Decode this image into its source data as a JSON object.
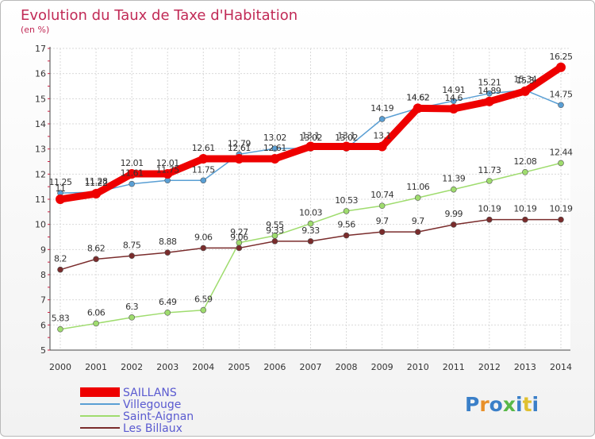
{
  "chart_data": {
    "type": "line",
    "title": "Evolution du Taux de Taxe d'Habitation",
    "subtitle": "(en %)",
    "ylim": [
      5,
      17
    ],
    "yticks": [
      5,
      6,
      7,
      8,
      9,
      10,
      11,
      12,
      13,
      14,
      15,
      16,
      17
    ],
    "grid": true,
    "legend_position": "bottom-left",
    "x": [
      2000,
      2001,
      2002,
      2003,
      2004,
      2005,
      2006,
      2007,
      2008,
      2009,
      2010,
      2011,
      2012,
      2013,
      2014
    ],
    "series": [
      {
        "name": "Villegouge",
        "color": "#5a9fd4",
        "values": [
          11.25,
          11.28,
          11.61,
          11.75,
          11.75,
          12.79,
          13.02,
          13.02,
          13.02,
          14.19,
          14.62,
          14.91,
          15.21,
          15.34,
          14.75
        ],
        "labels": [
          "11.25",
          "11.28",
          "11.61",
          "11.75",
          "11.75",
          "12.79",
          "13.02",
          "13.02",
          "13.02",
          "14.19",
          "14.62",
          "14.91",
          "15.21",
          "15.34",
          "14.75"
        ]
      },
      {
        "name": "SAILLANS",
        "color": "#ee0000",
        "values": [
          11,
          11.22,
          12.01,
          12.01,
          12.61,
          12.61,
          12.61,
          13.1,
          13.1,
          13.1,
          14.62,
          14.6,
          14.89,
          15.3,
          16.25
        ],
        "labels": [
          "11",
          "11.22",
          "12.01",
          "12.01",
          "12.61",
          "12.61",
          "12.61",
          "13.1",
          "13.1",
          "13.1",
          "14.62",
          "14.6",
          "14.89",
          "15.3",
          "16.25"
        ]
      },
      {
        "name": "Saint-Aignan",
        "color": "#9fdc6e",
        "values": [
          5.83,
          6.06,
          6.3,
          6.49,
          6.59,
          9.27,
          9.55,
          10.03,
          10.53,
          10.74,
          11.06,
          11.39,
          11.73,
          12.08,
          12.44
        ],
        "labels": [
          "5.83",
          "6.06",
          "6.3",
          "6.49",
          "6.59",
          "9.27",
          "9.55",
          "10.03",
          "10.53",
          "10.74",
          "11.06",
          "11.39",
          "11.73",
          "12.08",
          "12.44"
        ]
      },
      {
        "name": "Les Billaux",
        "color": "#7a2c2c",
        "values": [
          8.2,
          8.62,
          8.75,
          8.88,
          9.06,
          9.06,
          9.33,
          9.33,
          9.56,
          9.7,
          9.7,
          9.99,
          10.19,
          10.19,
          10.19
        ],
        "labels": [
          "8.2",
          "8.62",
          "8.75",
          "8.88",
          "9.06",
          "9.06",
          "9.33",
          "9.33",
          "9.56",
          "9.7",
          "9.7",
          "9.99",
          "10.19",
          "10.19",
          "10.19"
        ]
      }
    ],
    "legend_order": [
      "SAILLANS",
      "Villegouge",
      "Saint-Aignan",
      "Les Billaux"
    ]
  },
  "logo": {
    "text": "Proxiti"
  }
}
